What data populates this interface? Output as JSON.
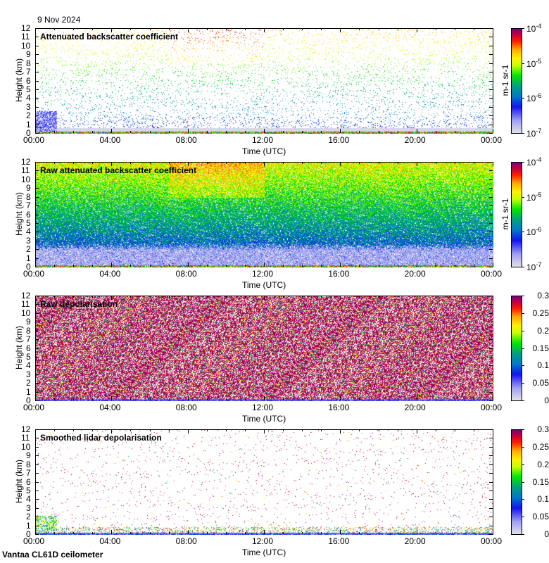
{
  "date": "9 Nov 2024",
  "footer": "Vantaa CL61D ceilometer",
  "chart_data": [
    {
      "type": "heatmap",
      "title": "Attenuated backscatter coefficient",
      "xlabel": "Time (UTC)",
      "ylabel": "Height (km)",
      "xticks": [
        "00:00",
        "04:00",
        "08:00",
        "12:00",
        "16:00",
        "20:00",
        "00:00"
      ],
      "yticks": [
        "0",
        "1",
        "2",
        "3",
        "4",
        "5",
        "6",
        "7",
        "8",
        "9",
        "10",
        "11",
        "12"
      ],
      "ylim": [
        0,
        12
      ],
      "colorbar": {
        "scale": "log",
        "label": "m-1 sr-1",
        "ticks": [
          {
            "base": "10",
            "exp": "-7"
          },
          {
            "base": "10",
            "exp": "-6"
          },
          {
            "base": "10",
            "exp": "-5"
          },
          {
            "base": "10",
            "exp": "-4"
          }
        ],
        "range": [
          1e-07,
          0.0001
        ]
      }
    },
    {
      "type": "heatmap",
      "title": "Raw attenuated backscatter coefficient",
      "xlabel": "Time (UTC)",
      "ylabel": "Height (km)",
      "xticks": [
        "00:00",
        "04:00",
        "08:00",
        "12:00",
        "16:00",
        "20:00",
        "00:00"
      ],
      "yticks": [
        "0",
        "1",
        "2",
        "3",
        "4",
        "5",
        "6",
        "7",
        "8",
        "9",
        "10",
        "11",
        "12"
      ],
      "ylim": [
        0,
        12
      ],
      "colorbar": {
        "scale": "log",
        "label": "m-1 sr-1",
        "ticks": [
          {
            "base": "10",
            "exp": "-7"
          },
          {
            "base": "10",
            "exp": "-6"
          },
          {
            "base": "10",
            "exp": "-5"
          },
          {
            "base": "10",
            "exp": "-4"
          }
        ],
        "range": [
          1e-07,
          0.0001
        ]
      }
    },
    {
      "type": "heatmap",
      "title": "Raw depolarisation",
      "xlabel": "Time (UTC)",
      "ylabel": "Height (km)",
      "xticks": [
        "00:00",
        "04:00",
        "08:00",
        "12:00",
        "16:00",
        "20:00",
        "00:00"
      ],
      "yticks": [
        "0",
        "1",
        "2",
        "3",
        "4",
        "5",
        "6",
        "7",
        "8",
        "9",
        "10",
        "11",
        "12"
      ],
      "ylim": [
        0,
        12
      ],
      "colorbar": {
        "scale": "linear",
        "label": "",
        "ticks": [
          "0",
          "0.05",
          "0.1",
          "0.15",
          "0.2",
          "0.25",
          "0.3"
        ],
        "range": [
          0,
          0.3
        ]
      }
    },
    {
      "type": "heatmap",
      "title": "Smoothed lidar depolarisation",
      "xlabel": "Time (UTC)",
      "ylabel": "Height (km)",
      "xticks": [
        "00:00",
        "04:00",
        "08:00",
        "12:00",
        "16:00",
        "20:00",
        "00:00"
      ],
      "yticks": [
        "0",
        "1",
        "2",
        "3",
        "4",
        "5",
        "6",
        "7",
        "8",
        "9",
        "10",
        "11",
        "12"
      ],
      "ylim": [
        0,
        12
      ],
      "colorbar": {
        "scale": "linear",
        "label": "",
        "ticks": [
          "0",
          "0.05",
          "0.1",
          "0.15",
          "0.2",
          "0.25",
          "0.3"
        ],
        "range": [
          0,
          0.3
        ]
      }
    }
  ]
}
